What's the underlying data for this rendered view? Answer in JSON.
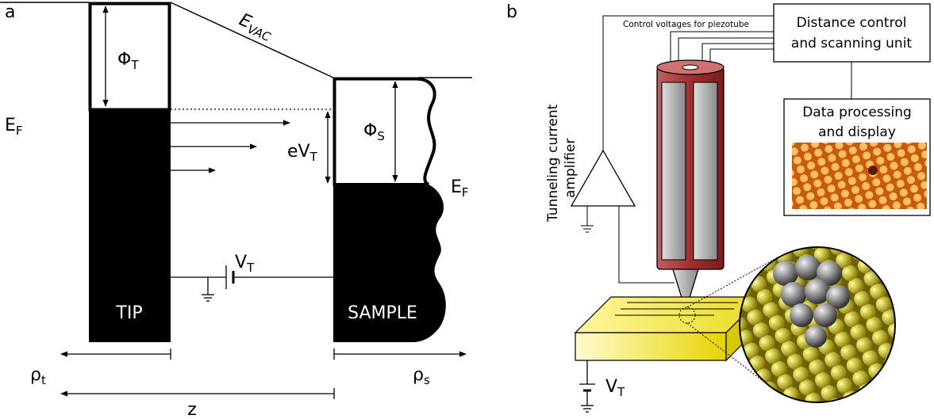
{
  "panel_a": {
    "label": "a",
    "phi_t": {
      "symbol": "Φ",
      "sub": "T"
    },
    "ef_tip": {
      "symbol": "E",
      "sub": "F"
    },
    "evac": {
      "symbol": "E",
      "sub": "VAC"
    },
    "ev_t": {
      "symbol": "eV",
      "sub": "T"
    },
    "phi_s": {
      "symbol": "Φ",
      "sub": "S"
    },
    "ef_sample": {
      "symbol": "E",
      "sub": "F"
    },
    "v_t": {
      "symbol": "V",
      "sub": "T"
    },
    "tip": "TIP",
    "sample": "SAMPLE",
    "rho_t": {
      "symbol": "ρ",
      "sub": "t"
    },
    "rho_s": {
      "symbol": "ρ",
      "sub": "s"
    },
    "z": "z"
  },
  "panel_b": {
    "label": "b",
    "control_voltages": "Control voltages for piezotube",
    "distance_control": [
      "Distance control",
      "and scanning unit"
    ],
    "data_processing": [
      "Data processing",
      "and display"
    ],
    "amplifier": [
      "Tunneling current",
      "amplifier"
    ],
    "v_t": {
      "symbol": "V",
      "sub": "T"
    }
  }
}
